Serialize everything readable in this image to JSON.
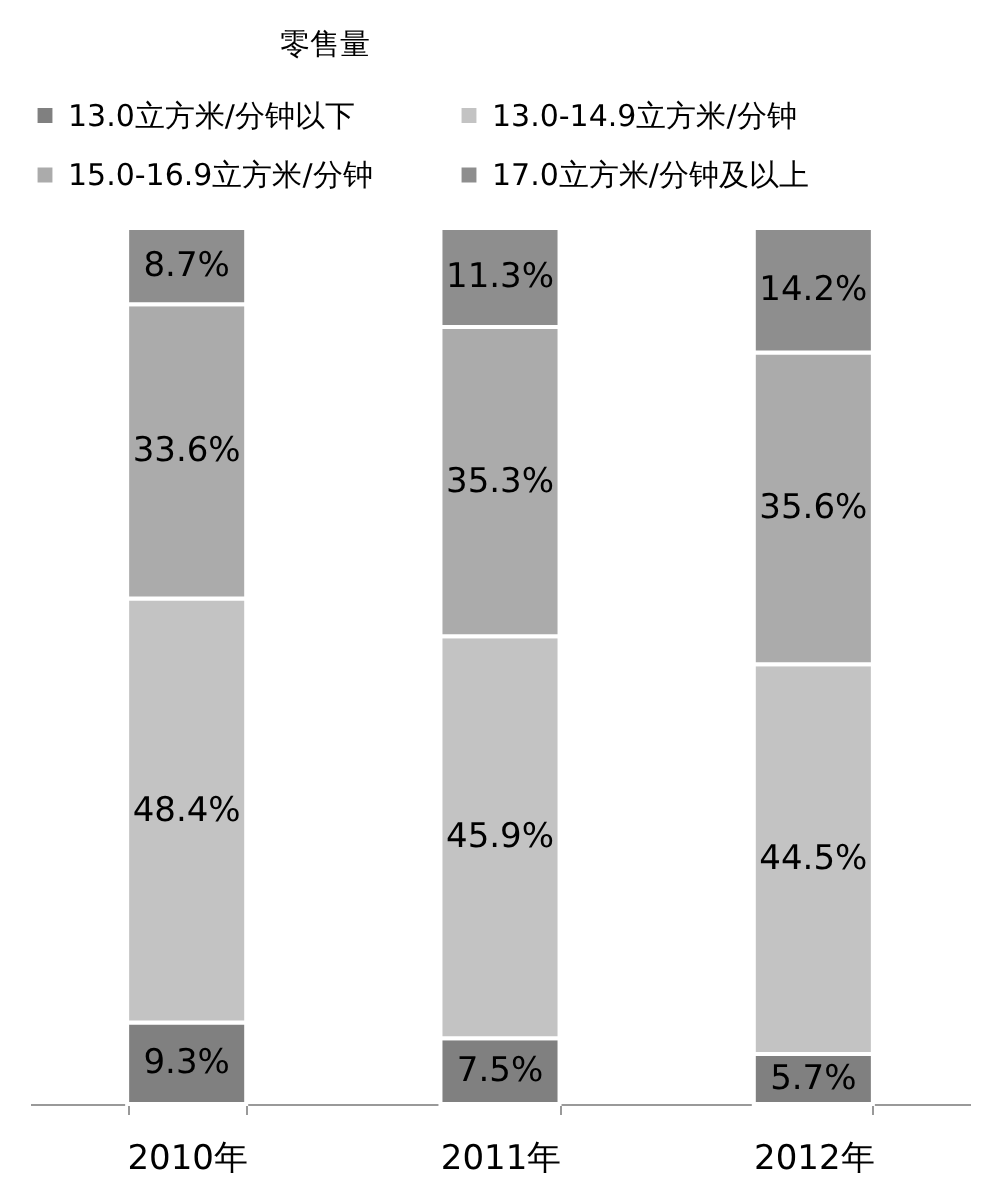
{
  "chart_data": {
    "type": "bar",
    "title": "零售量",
    "stacked": true,
    "legend": "top",
    "categories": [
      "2010年",
      "2011年",
      "2012年"
    ],
    "series": [
      {
        "name": "13.0立方米/分钟以下",
        "color": "#808080",
        "values": [
          9.3,
          7.5,
          5.7
        ],
        "value_labels": [
          "9.3%",
          "7.5%",
          "5.7%"
        ]
      },
      {
        "name": "13.0-14.9立方米/分钟",
        "color": "#c3c3c3",
        "values": [
          48.4,
          45.9,
          44.5
        ],
        "value_labels": [
          "48.4%",
          "45.9%",
          "44.5%"
        ]
      },
      {
        "name": "15.0-16.9立方米/分钟",
        "color": "#ababab",
        "values": [
          33.6,
          35.3,
          35.6
        ],
        "value_labels": [
          "33.6%",
          "35.3%",
          "35.6%"
        ]
      },
      {
        "name": "17.0立方米/分钟及以上",
        "color": "#8e8e8e",
        "values": [
          8.7,
          11.3,
          14.2
        ],
        "value_labels": [
          "8.7%",
          "11.3%",
          "14.2%"
        ]
      }
    ]
  }
}
